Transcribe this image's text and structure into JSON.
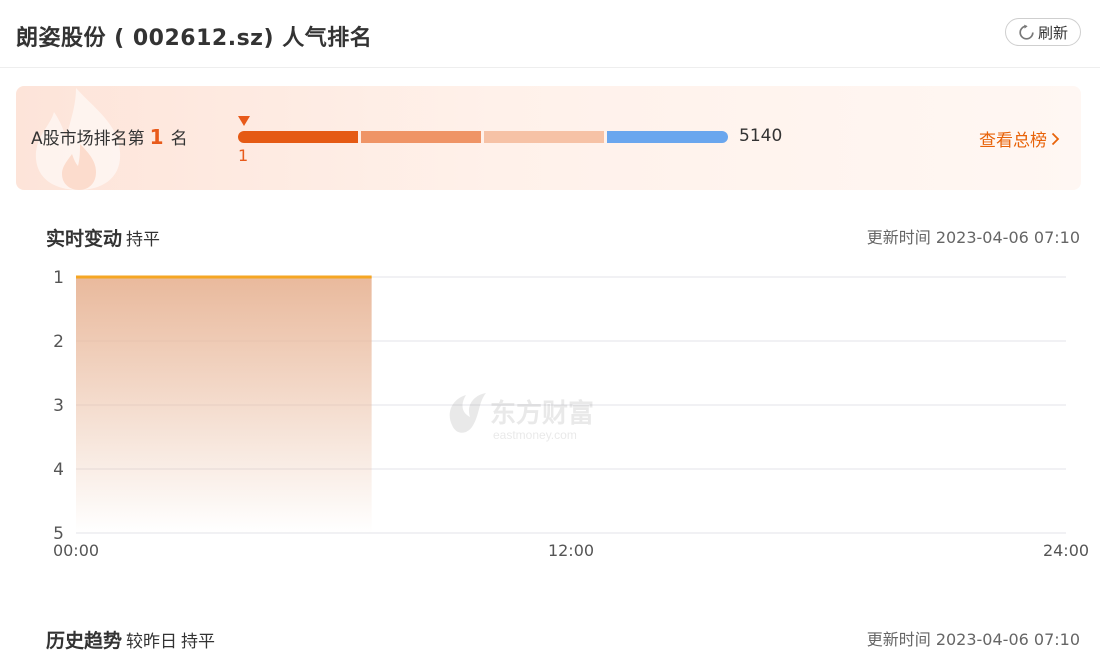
{
  "header": {
    "title": "朗姿股份 ( 002612.sz) 人气排名",
    "refresh_label": "刷新"
  },
  "rank_card": {
    "prefix": "A股市场排名第",
    "rank": "1",
    "suffix": "名",
    "scale_min": "1",
    "scale_max": "5140",
    "view_all_label": "查看总榜",
    "segment_colors": [
      "#e55a14",
      "#ef9466",
      "#f6c2a6",
      "#6aa6ee"
    ]
  },
  "realtime": {
    "title": "实时变动",
    "change": "持平",
    "update_label": "更新时间",
    "update_time": "2023-04-06 07:10"
  },
  "history": {
    "title": "历史趋势",
    "compare_label": "较昨日",
    "change": "持平",
    "update_label": "更新时间",
    "update_time": "2023-04-06 07:10"
  },
  "watermark": {
    "brand_cn": "东方财富",
    "brand_en": "eastmoney.com"
  },
  "chart_data": {
    "type": "area",
    "title": "",
    "xlabel": "",
    "ylabel": "",
    "y_reversed": true,
    "ylim": [
      1,
      5
    ],
    "xlim": [
      "00:00",
      "24:00"
    ],
    "y_ticks": [
      "1",
      "2",
      "3",
      "4",
      "5"
    ],
    "x_ticks": [
      "00:00",
      "12:00",
      "24:00"
    ],
    "grid": true,
    "series": [
      {
        "x": [
          "00:00",
          "07:10"
        ],
        "values": [
          1,
          1
        ]
      }
    ],
    "colors": {
      "line": "#f5a623",
      "fill": "#e9b99c"
    }
  }
}
